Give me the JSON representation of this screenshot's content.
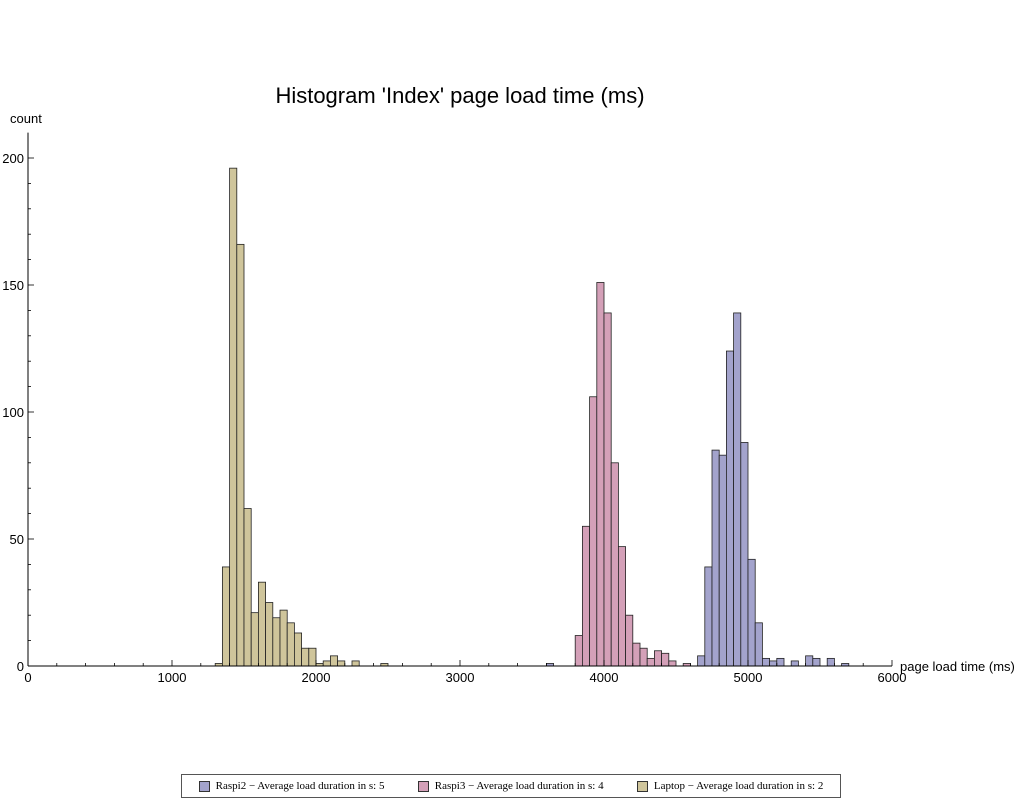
{
  "chart_data": {
    "type": "bar",
    "title": "Histogram 'Index' page load time (ms)",
    "xlabel": "page load time (ms)",
    "ylabel": "count",
    "xlim": [
      0,
      6000
    ],
    "ylim": [
      0,
      210
    ],
    "bin_width": 50,
    "xticks": [
      0,
      1000,
      2000,
      3000,
      4000,
      5000,
      6000
    ],
    "yticks": [
      0,
      50,
      100,
      150,
      200
    ],
    "series": [
      {
        "name": "Raspi2 − Average load duration in s: 5",
        "color": "#a3a3cc",
        "bins": [
          {
            "x": 3600,
            "count": 1
          },
          {
            "x": 4650,
            "count": 4
          },
          {
            "x": 4700,
            "count": 39
          },
          {
            "x": 4750,
            "count": 85
          },
          {
            "x": 4800,
            "count": 83
          },
          {
            "x": 4850,
            "count": 124
          },
          {
            "x": 4900,
            "count": 139
          },
          {
            "x": 4950,
            "count": 88
          },
          {
            "x": 5000,
            "count": 42
          },
          {
            "x": 5050,
            "count": 17
          },
          {
            "x": 5100,
            "count": 3
          },
          {
            "x": 5150,
            "count": 2
          },
          {
            "x": 5200,
            "count": 3
          },
          {
            "x": 5300,
            "count": 2
          },
          {
            "x": 5400,
            "count": 4
          },
          {
            "x": 5450,
            "count": 3
          },
          {
            "x": 5550,
            "count": 3
          },
          {
            "x": 5650,
            "count": 1
          }
        ]
      },
      {
        "name": "Raspi3 − Average load duration in s: 4",
        "color": "#d4a0b8",
        "bins": [
          {
            "x": 3800,
            "count": 12
          },
          {
            "x": 3850,
            "count": 55
          },
          {
            "x": 3900,
            "count": 106
          },
          {
            "x": 3950,
            "count": 151
          },
          {
            "x": 4000,
            "count": 139
          },
          {
            "x": 4050,
            "count": 80
          },
          {
            "x": 4100,
            "count": 47
          },
          {
            "x": 4150,
            "count": 20
          },
          {
            "x": 4200,
            "count": 9
          },
          {
            "x": 4250,
            "count": 7
          },
          {
            "x": 4300,
            "count": 3
          },
          {
            "x": 4350,
            "count": 6
          },
          {
            "x": 4400,
            "count": 5
          },
          {
            "x": 4450,
            "count": 2
          },
          {
            "x": 4550,
            "count": 1
          }
        ]
      },
      {
        "name": "Laptop − Average load duration in s: 2",
        "color": "#cfc59b",
        "bins": [
          {
            "x": 1300,
            "count": 1
          },
          {
            "x": 1350,
            "count": 39
          },
          {
            "x": 1400,
            "count": 196
          },
          {
            "x": 1450,
            "count": 166
          },
          {
            "x": 1500,
            "count": 62
          },
          {
            "x": 1550,
            "count": 21
          },
          {
            "x": 1600,
            "count": 33
          },
          {
            "x": 1650,
            "count": 25
          },
          {
            "x": 1700,
            "count": 19
          },
          {
            "x": 1750,
            "count": 22
          },
          {
            "x": 1800,
            "count": 17
          },
          {
            "x": 1850,
            "count": 13
          },
          {
            "x": 1900,
            "count": 7
          },
          {
            "x": 1950,
            "count": 7
          },
          {
            "x": 2000,
            "count": 1
          },
          {
            "x": 2050,
            "count": 2
          },
          {
            "x": 2100,
            "count": 4
          },
          {
            "x": 2150,
            "count": 2
          },
          {
            "x": 2250,
            "count": 2
          },
          {
            "x": 2450,
            "count": 1
          }
        ]
      }
    ],
    "legend": {
      "placement": "bottom"
    }
  }
}
